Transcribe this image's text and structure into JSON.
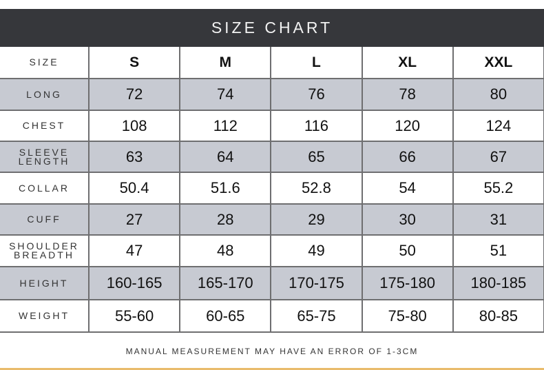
{
  "title": "SIZE CHART",
  "header": {
    "label": "SIZE",
    "sizes": [
      "S",
      "M",
      "L",
      "XL",
      "XXL"
    ]
  },
  "rows": [
    {
      "label": "LONG",
      "values": [
        "72",
        "74",
        "76",
        "78",
        "80"
      ]
    },
    {
      "label": "CHEST",
      "values": [
        "108",
        "112",
        "116",
        "120",
        "124"
      ]
    },
    {
      "label": "SLEEVE LENGTH",
      "values": [
        "63",
        "64",
        "65",
        "66",
        "67"
      ]
    },
    {
      "label": "COLLAR",
      "values": [
        "50.4",
        "51.6",
        "52.8",
        "54",
        "55.2"
      ]
    },
    {
      "label": "CUFF",
      "values": [
        "27",
        "28",
        "29",
        "30",
        "31"
      ]
    },
    {
      "label": "SHOULDER BREADTH",
      "values": [
        "47",
        "48",
        "49",
        "50",
        "51"
      ]
    },
    {
      "label": "HEIGHT",
      "values": [
        "160-165",
        "165-170",
        "170-175",
        "175-180",
        "180-185"
      ]
    },
    {
      "label": "WEIGHT",
      "values": [
        "55-60",
        "60-65",
        "65-75",
        "75-80",
        "80-85"
      ]
    }
  ],
  "note": "MANUAL MEASUREMENT MAY HAVE AN ERROR OF 1-3CM",
  "colors": {
    "header_bg": "#36373b",
    "stripe": "#c7cad2",
    "accent": "#e9bb6b"
  }
}
